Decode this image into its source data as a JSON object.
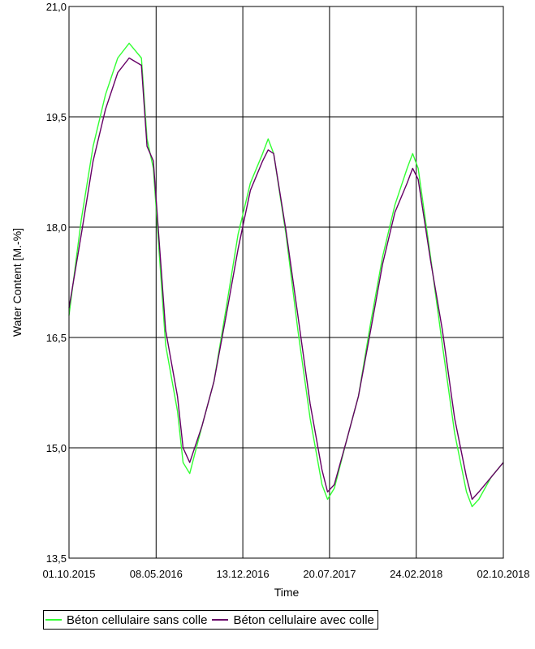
{
  "chart_data": {
    "type": "line",
    "xlabel": "Time",
    "ylabel": "Water Content [M.-%]",
    "xlim": [
      "01.10.2015",
      "02.10.2018"
    ],
    "ylim": [
      13.5,
      21.0
    ],
    "x_ticks": [
      "01.10.2015",
      "08.05.2016",
      "13.12.2016",
      "20.07.2017",
      "24.02.2018",
      "02.10.2018"
    ],
    "y_ticks": [
      "13,5",
      "15,0",
      "16,5",
      "18,0",
      "19,5",
      "21,0"
    ],
    "grid": true,
    "legend_position": "bottom",
    "series": [
      {
        "name": "Béton cellulaire sans colle",
        "color": "#33ff33",
        "points": [
          [
            "01.10.2015",
            16.8
          ],
          [
            "01.11.2015",
            18.1
          ],
          [
            "01.12.2015",
            19.1
          ],
          [
            "01.01.2016",
            19.8
          ],
          [
            "01.02.2016",
            20.3
          ],
          [
            "01.03.2016",
            20.5
          ],
          [
            "01.04.2016",
            20.3
          ],
          [
            "15.04.2016",
            19.2
          ],
          [
            "01.05.2016",
            18.8
          ],
          [
            "01.06.2016",
            16.4
          ],
          [
            "01.07.2016",
            15.5
          ],
          [
            "15.07.2016",
            14.8
          ],
          [
            "01.08.2016",
            14.65
          ],
          [
            "01.09.2016",
            15.3
          ],
          [
            "01.10.2016",
            15.9
          ],
          [
            "01.11.2016",
            16.9
          ],
          [
            "01.12.2016",
            17.9
          ],
          [
            "01.01.2017",
            18.6
          ],
          [
            "01.02.2017",
            19.0
          ],
          [
            "15.02.2017",
            19.2
          ],
          [
            "01.03.2017",
            19.0
          ],
          [
            "01.04.2017",
            17.9
          ],
          [
            "01.05.2017",
            16.6
          ],
          [
            "01.06.2017",
            15.4
          ],
          [
            "01.07.2017",
            14.5
          ],
          [
            "15.07.2017",
            14.3
          ],
          [
            "01.08.2017",
            14.45
          ],
          [
            "01.09.2017",
            15.1
          ],
          [
            "01.10.2017",
            15.7
          ],
          [
            "01.11.2017",
            16.7
          ],
          [
            "01.12.2017",
            17.6
          ],
          [
            "01.01.2018",
            18.3
          ],
          [
            "01.02.2018",
            18.8
          ],
          [
            "15.02.2018",
            19.0
          ],
          [
            "01.03.2018",
            18.8
          ],
          [
            "01.04.2018",
            17.6
          ],
          [
            "01.05.2018",
            16.4
          ],
          [
            "01.06.2018",
            15.2
          ],
          [
            "01.07.2018",
            14.4
          ],
          [
            "15.07.2018",
            14.2
          ],
          [
            "01.08.2018",
            14.3
          ],
          [
            "01.09.2018",
            14.6
          ],
          [
            "02.10.2018",
            14.8
          ]
        ]
      },
      {
        "name": "Béton cellulaire avec colle",
        "color": "#660066",
        "points": [
          [
            "01.10.2015",
            16.9
          ],
          [
            "01.11.2015",
            17.9
          ],
          [
            "01.12.2015",
            18.9
          ],
          [
            "01.01.2016",
            19.6
          ],
          [
            "01.02.2016",
            20.1
          ],
          [
            "01.03.2016",
            20.3
          ],
          [
            "01.04.2016",
            20.2
          ],
          [
            "15.04.2016",
            19.1
          ],
          [
            "01.05.2016",
            18.9
          ],
          [
            "01.06.2016",
            16.6
          ],
          [
            "01.07.2016",
            15.7
          ],
          [
            "15.07.2016",
            15.0
          ],
          [
            "01.08.2016",
            14.8
          ],
          [
            "01.09.2016",
            15.3
          ],
          [
            "01.10.2016",
            15.9
          ],
          [
            "01.11.2016",
            16.8
          ],
          [
            "01.12.2016",
            17.7
          ],
          [
            "01.01.2017",
            18.5
          ],
          [
            "01.02.2017",
            18.9
          ],
          [
            "15.02.2017",
            19.05
          ],
          [
            "01.03.2017",
            19.0
          ],
          [
            "01.04.2017",
            17.95
          ],
          [
            "01.05.2017",
            16.8
          ],
          [
            "01.06.2017",
            15.6
          ],
          [
            "01.07.2017",
            14.7
          ],
          [
            "15.07.2017",
            14.4
          ],
          [
            "01.08.2017",
            14.5
          ],
          [
            "01.09.2017",
            15.1
          ],
          [
            "01.10.2017",
            15.7
          ],
          [
            "01.11.2017",
            16.6
          ],
          [
            "01.12.2017",
            17.5
          ],
          [
            "01.01.2018",
            18.2
          ],
          [
            "01.02.2018",
            18.6
          ],
          [
            "15.02.2018",
            18.8
          ],
          [
            "01.03.2018",
            18.65
          ],
          [
            "01.04.2018",
            17.55
          ],
          [
            "01.05.2018",
            16.6
          ],
          [
            "01.06.2018",
            15.4
          ],
          [
            "01.07.2018",
            14.6
          ],
          [
            "15.07.2018",
            14.3
          ],
          [
            "01.08.2018",
            14.4
          ],
          [
            "01.09.2018",
            14.6
          ],
          [
            "02.10.2018",
            14.8
          ]
        ]
      }
    ]
  }
}
